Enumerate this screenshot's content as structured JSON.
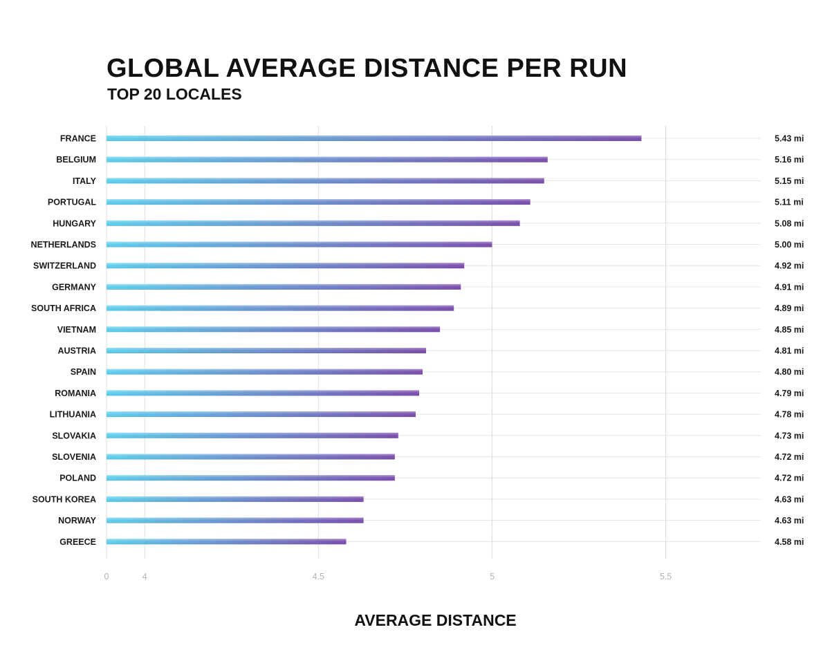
{
  "chart_data": {
    "type": "bar",
    "orientation": "horizontal",
    "title": "GLOBAL AVERAGE DISTANCE PER RUN",
    "subtitle": "TOP 20 LOCALES",
    "xlabel": "AVERAGE DISTANCE",
    "ylabel": "",
    "unit": "mi",
    "xlim": [
      3.89,
      5.72
    ],
    "axis_break": true,
    "x_ticks": [
      {
        "value": 0,
        "label": "0",
        "position_value": 3.89
      },
      {
        "value": 4,
        "label": "4",
        "position_value": 4
      },
      {
        "value": 4.5,
        "label": "4.5",
        "position_value": 4.5
      },
      {
        "value": 5,
        "label": "5",
        "position_value": 5
      },
      {
        "value": 5.5,
        "label": "5.5",
        "position_value": 5.5
      }
    ],
    "categories": [
      "FRANCE",
      "BELGIUM",
      "ITALY",
      "PORTUGAL",
      "HUNGARY",
      "NETHERLANDS",
      "SWITZERLAND",
      "GERMANY",
      "SOUTH AFRICA",
      "VIETNAM",
      "AUSTRIA",
      "SPAIN",
      "ROMANIA",
      "LITHUANIA",
      "SLOVAKIA",
      "SLOVENIA",
      "POLAND",
      "SOUTH KOREA",
      "NORWAY",
      "GREECE"
    ],
    "values": [
      5.43,
      5.16,
      5.15,
      5.11,
      5.08,
      5.0,
      4.92,
      4.91,
      4.89,
      4.85,
      4.81,
      4.8,
      4.79,
      4.78,
      4.73,
      4.72,
      4.72,
      4.63,
      4.63,
      4.58
    ],
    "value_labels": [
      "5.43 mi",
      "5.16 mi",
      "5.15 mi",
      "5.11 mi",
      "5.08 mi",
      "5.00 mi",
      "4.92 mi",
      "4.91 mi",
      "4.89 mi",
      "4.85 mi",
      "4.81 mi",
      "4.80 mi",
      "4.79 mi",
      "4.78 mi",
      "4.73 mi",
      "4.72 mi",
      "4.72 mi",
      "4.63 mi",
      "4.63 mi",
      "4.58 mi"
    ],
    "grid": true,
    "legend": "none",
    "colors": {
      "bar_start": "#5fd0ee",
      "bar_end": "#7b4fae",
      "grid": "#dcdcdc",
      "tick": "#b3b3b3",
      "text": "#1a1a1a"
    }
  }
}
